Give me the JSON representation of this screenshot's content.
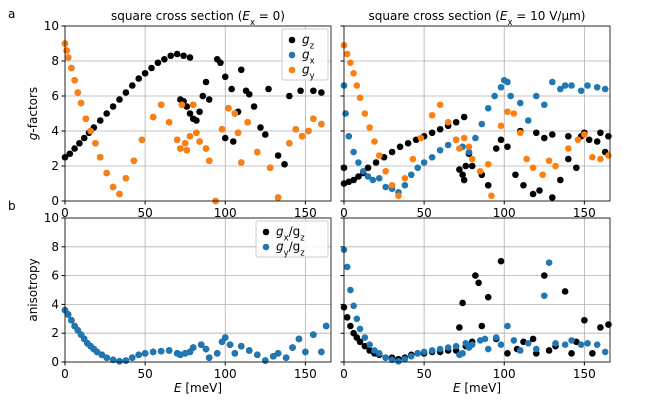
{
  "chart_data": [
    {
      "type": "scatter",
      "panel_label": "a",
      "title": [
        "square cross section (",
        "E",
        "x",
        " = 0)"
      ],
      "y_label": [
        "g",
        "-factors"
      ],
      "xlim": [
        0,
        166
      ],
      "xticks": [
        0,
        50,
        100,
        150
      ],
      "ylim": [
        0,
        10
      ],
      "yticks": [
        0,
        2,
        4,
        6,
        8,
        10
      ],
      "grid": true,
      "legend": "upper right",
      "series": [
        {
          "name": [
            "g",
            "z"
          ],
          "color": "#000000",
          "x": [
            0,
            3,
            6,
            9,
            12,
            15,
            18,
            22,
            26,
            30,
            34,
            38,
            42,
            46,
            50,
            54,
            58,
            62,
            66,
            70,
            74,
            78,
            72,
            74,
            76,
            78,
            80,
            82,
            84,
            86,
            88,
            90,
            95,
            97,
            100,
            105,
            110,
            113,
            118,
            122,
            127,
            133,
            140,
            147,
            155,
            160,
            100,
            104,
            108,
            115,
            125,
            137
          ],
          "values": [
            2.5,
            2.7,
            3.0,
            3.3,
            3.6,
            3.9,
            4.2,
            4.6,
            5.0,
            5.4,
            5.8,
            6.2,
            6.6,
            7.0,
            7.3,
            7.6,
            7.9,
            8.1,
            8.3,
            8.4,
            8.3,
            8.2,
            5.8,
            5.7,
            5.4,
            5.0,
            4.7,
            4.6,
            5.1,
            6.0,
            6.8,
            5.8,
            8.1,
            7.9,
            3.6,
            3.4,
            7.5,
            6.3,
            5.4,
            4.2,
            6.4,
            2.6,
            6.0,
            6.3,
            6.3,
            6.2,
            7.1,
            6.4,
            5.1,
            6.1,
            3.8,
            2.1
          ]
        },
        {
          "name": [
            "g",
            "x"
          ],
          "color": "#1f77b4",
          "x": [
            0,
            1,
            2,
            4,
            6,
            8,
            10,
            13,
            16,
            19,
            22,
            26,
            30,
            34,
            38,
            43,
            48,
            55,
            60,
            65,
            70,
            72,
            73,
            75,
            76,
            78,
            80,
            82,
            84,
            88,
            90,
            94,
            98,
            102,
            106,
            108,
            110,
            114,
            120,
            128,
            133,
            140,
            144,
            148,
            152,
            155,
            160
          ],
          "values": [
            9.0,
            8.6,
            8.2,
            7.6,
            6.9,
            6.2,
            5.6,
            4.7,
            4.0,
            3.3,
            2.5,
            1.6,
            0.8,
            0.4,
            1.3,
            2.3,
            3.5,
            4.8,
            5.5,
            4.5,
            3.5,
            3.0,
            5.5,
            3.3,
            2.9,
            3.7,
            5.5,
            3.9,
            3.4,
            3.0,
            2.3,
            0.0,
            4.1,
            5.3,
            5.0,
            3.9,
            2.2,
            4.5,
            2.8,
            1.9,
            0.2,
            3.3,
            4.1,
            3.7,
            4.0,
            4.7,
            4.4
          ]
        },
        {
          "name": [
            "g",
            "y"
          ],
          "color": "#ff7f0e",
          "x": [
            0,
            1,
            2,
            4,
            6,
            8,
            10,
            13,
            16,
            19,
            22,
            26,
            30,
            34,
            38,
            43,
            48,
            55,
            60,
            65,
            70,
            72,
            73,
            75,
            76,
            78,
            80,
            82,
            84,
            88,
            90,
            94,
            98,
            102,
            106,
            108,
            110,
            114,
            120,
            128,
            133,
            140,
            144,
            148,
            152,
            155,
            160
          ],
          "values": [
            9.0,
            8.6,
            8.2,
            7.6,
            6.9,
            6.2,
            5.6,
            4.7,
            4.0,
            3.3,
            2.5,
            1.6,
            0.8,
            0.4,
            1.3,
            2.3,
            3.5,
            4.8,
            5.5,
            4.5,
            3.5,
            3.0,
            5.5,
            3.3,
            2.9,
            3.7,
            5.5,
            3.9,
            3.4,
            3.0,
            2.3,
            0.0,
            4.1,
            5.3,
            5.0,
            3.9,
            2.2,
            4.5,
            2.8,
            1.9,
            0.2,
            3.3,
            4.1,
            3.7,
            4.0,
            4.7,
            4.4
          ]
        }
      ]
    },
    {
      "type": "scatter",
      "title": [
        "square cross section (",
        "E",
        "x",
        " = 10 V/μm)"
      ],
      "sharey": true,
      "xlim": [
        0,
        166
      ],
      "xticks": [
        0,
        50,
        100,
        150
      ],
      "ylim": [
        0,
        10
      ],
      "yticks": [
        0,
        2,
        4,
        6,
        8,
        10
      ],
      "grid": true,
      "series": [
        {
          "color": "#000000",
          "x": [
            0,
            3,
            6,
            9,
            12,
            15,
            20,
            25,
            30,
            35,
            40,
            45,
            50,
            55,
            60,
            65,
            70,
            75,
            0,
            72,
            74,
            75,
            76,
            78,
            80,
            86,
            90,
            95,
            98,
            102,
            107,
            112,
            118,
            122,
            125,
            130,
            135,
            140,
            145,
            148,
            153,
            158,
            163,
            110,
            120,
            130,
            140,
            150,
            160,
            165
          ],
          "values": [
            1.0,
            1.1,
            1.2,
            1.4,
            1.6,
            1.9,
            2.2,
            2.5,
            2.8,
            3.1,
            3.3,
            3.5,
            3.7,
            3.9,
            4.1,
            4.3,
            4.5,
            4.8,
            1.9,
            1.8,
            1.5,
            1.2,
            2.0,
            2.7,
            2.0,
            1.5,
            0.9,
            3.0,
            3.5,
            3.1,
            1.5,
            0.9,
            0.4,
            0.6,
            3.6,
            0.2,
            1.2,
            2.4,
            1.9,
            3.7,
            3.5,
            3.4,
            2.8,
            4.0,
            3.9,
            3.8,
            3.7,
            3.9,
            3.9,
            3.7
          ]
        },
        {
          "color": "#1f77b4",
          "x": [
            0,
            1,
            3,
            6,
            9,
            12,
            15,
            18,
            22,
            26,
            30,
            34,
            38,
            42,
            46,
            50,
            55,
            60,
            65,
            70,
            74,
            78,
            82,
            86,
            90,
            94,
            98,
            100,
            102,
            104,
            110,
            115,
            120,
            125,
            130,
            135,
            138,
            142,
            148,
            152,
            158,
            163
          ],
          "values": [
            6.6,
            5.0,
            3.7,
            2.8,
            2.2,
            1.7,
            1.4,
            1.2,
            1.3,
            0.8,
            0.7,
            0.5,
            0.9,
            1.5,
            1.9,
            2.2,
            2.5,
            2.9,
            3.2,
            3.5,
            3.1,
            2.8,
            3.6,
            4.4,
            5.3,
            6.0,
            6.5,
            6.9,
            6.8,
            6.0,
            5.6,
            4.6,
            6.0,
            5.5,
            6.8,
            6.4,
            6.6,
            6.6,
            6.3,
            6.6,
            6.5,
            6.4
          ]
        },
        {
          "color": "#ff7f0e",
          "x": [
            0,
            2,
            4,
            6,
            8,
            10,
            13,
            16,
            19,
            22,
            26,
            30,
            34,
            38,
            43,
            48,
            55,
            60,
            65,
            70,
            72,
            75,
            78,
            80,
            85,
            90,
            92,
            98,
            102,
            106,
            110,
            114,
            118,
            124,
            128,
            132,
            140,
            146,
            150,
            155,
            160,
            165
          ],
          "values": [
            8.9,
            8.4,
            7.9,
            7.3,
            6.6,
            5.9,
            5.0,
            4.2,
            3.4,
            2.6,
            1.7,
            0.9,
            0.3,
            1.3,
            2.4,
            3.6,
            4.9,
            5.5,
            4.5,
            3.5,
            3.0,
            3.6,
            3.1,
            2.4,
            1.7,
            2.1,
            0.3,
            4.3,
            5.1,
            5.0,
            3.9,
            2.4,
            1.9,
            1.5,
            2.3,
            2.0,
            3.0,
            3.5,
            3.8,
            2.5,
            2.4,
            2.6
          ]
        }
      ]
    },
    {
      "type": "scatter",
      "panel_label": "b",
      "y_label": "anisotropy",
      "x_label": [
        "E",
        " [meV]"
      ],
      "xlim": [
        0,
        166
      ],
      "xticks": [
        0,
        50,
        100,
        150
      ],
      "ylim": [
        0,
        10
      ],
      "yticks": [
        0,
        2,
        4,
        6,
        8,
        10
      ],
      "grid": true,
      "legend": "upper right",
      "series": [
        {
          "name": [
            "g",
            "x",
            "/g",
            "z"
          ],
          "color": "#000000",
          "x": [
            0,
            2,
            4,
            6,
            8,
            10,
            12,
            14,
            16,
            18,
            20,
            23,
            26,
            30,
            34,
            38,
            42,
            46,
            50,
            55,
            60,
            65,
            70,
            72,
            75,
            78,
            80,
            85,
            88,
            90,
            95,
            98,
            100,
            103,
            106,
            110,
            115,
            120,
            125,
            130,
            133,
            138,
            142,
            146,
            150,
            155,
            160,
            163
          ],
          "values": [
            3.6,
            3.3,
            2.9,
            2.5,
            2.2,
            1.9,
            1.6,
            1.3,
            1.1,
            0.9,
            0.7,
            0.5,
            0.3,
            0.15,
            0.05,
            0.1,
            0.3,
            0.5,
            0.6,
            0.7,
            0.75,
            0.8,
            0.6,
            0.5,
            0.6,
            0.7,
            1.0,
            1.2,
            0.9,
            0.3,
            0.6,
            1.4,
            1.7,
            1.2,
            0.6,
            1.1,
            0.8,
            0.5,
            0.1,
            0.4,
            0.6,
            0.3,
            1.0,
            1.6,
            0.7,
            1.9,
            0.7,
            2.5
          ]
        },
        {
          "name": [
            "g",
            "y",
            "/g",
            "z"
          ],
          "color": "#1f77b4",
          "x": [
            0,
            2,
            4,
            6,
            8,
            10,
            12,
            14,
            16,
            18,
            20,
            23,
            26,
            30,
            34,
            38,
            42,
            46,
            50,
            55,
            60,
            65,
            70,
            72,
            75,
            78,
            80,
            85,
            88,
            90,
            95,
            98,
            100,
            103,
            106,
            110,
            115,
            120,
            125,
            130,
            133,
            138,
            142,
            146,
            150,
            155,
            160,
            163
          ],
          "values": [
            3.6,
            3.3,
            2.9,
            2.5,
            2.2,
            1.9,
            1.6,
            1.3,
            1.1,
            0.9,
            0.7,
            0.5,
            0.3,
            0.15,
            0.05,
            0.1,
            0.3,
            0.5,
            0.6,
            0.7,
            0.75,
            0.8,
            0.6,
            0.5,
            0.6,
            0.7,
            1.0,
            1.2,
            0.9,
            0.3,
            0.6,
            1.4,
            1.7,
            1.2,
            0.6,
            1.1,
            0.8,
            0.5,
            0.1,
            0.4,
            0.6,
            0.3,
            1.0,
            1.6,
            0.7,
            1.9,
            0.7,
            2.5
          ]
        }
      ]
    },
    {
      "type": "scatter",
      "x_label": [
        "E",
        " [meV]"
      ],
      "sharey": true,
      "xlim": [
        0,
        166
      ],
      "xticks": [
        0,
        50,
        100,
        150
      ],
      "ylim": [
        0,
        10
      ],
      "yticks": [
        0,
        2,
        4,
        6,
        8,
        10
      ],
      "grid": true,
      "series": [
        {
          "color": "#000000",
          "x": [
            0,
            2,
            4,
            6,
            8,
            10,
            13,
            16,
            19,
            22,
            26,
            30,
            34,
            38,
            42,
            46,
            50,
            55,
            60,
            65,
            70,
            72,
            74,
            76,
            80,
            82,
            84,
            86,
            90,
            95,
            98,
            102,
            108,
            112,
            118,
            120,
            125,
            128,
            132,
            138,
            142,
            145,
            150,
            155,
            160,
            165
          ],
          "values": [
            3.8,
            3.1,
            2.5,
            2.0,
            1.7,
            1.4,
            1.1,
            0.8,
            0.6,
            0.5,
            0.3,
            0.3,
            0.2,
            0.3,
            0.5,
            0.6,
            0.6,
            0.7,
            0.7,
            0.8,
            0.8,
            2.4,
            4.1,
            1.1,
            1.4,
            6.0,
            5.5,
            2.5,
            4.5,
            1.6,
            7.0,
            0.6,
            0.9,
            1.4,
            1.6,
            0.6,
            6.0,
            0.8,
            1.1,
            4.9,
            0.6,
            1.4,
            2.9,
            0.6,
            2.4,
            2.6
          ]
        },
        {
          "color": "#1f77b4",
          "x": [
            0,
            2,
            4,
            6,
            8,
            10,
            13,
            16,
            19,
            22,
            26,
            30,
            34,
            38,
            42,
            46,
            50,
            55,
            60,
            65,
            70,
            72,
            74,
            76,
            78,
            80,
            85,
            88,
            90,
            95,
            98,
            102,
            106,
            110,
            115,
            120,
            125,
            128,
            132,
            138,
            142,
            148,
            152,
            158,
            163
          ],
          "values": [
            7.8,
            6.6,
            5.0,
            3.9,
            3.0,
            2.3,
            1.7,
            1.2,
            0.8,
            0.6,
            0.3,
            0.15,
            0.05,
            0.2,
            0.4,
            0.6,
            0.7,
            0.8,
            0.9,
            1.0,
            1.1,
            0.5,
            0.6,
            1.3,
            1.0,
            1.2,
            1.5,
            1.6,
            0.9,
            1.7,
            1.2,
            2.5,
            1.5,
            0.8,
            1.3,
            0.9,
            4.6,
            6.9,
            1.3,
            1.2,
            1.5,
            1.2,
            1.3,
            1.2,
            0.7
          ]
        }
      ]
    }
  ]
}
